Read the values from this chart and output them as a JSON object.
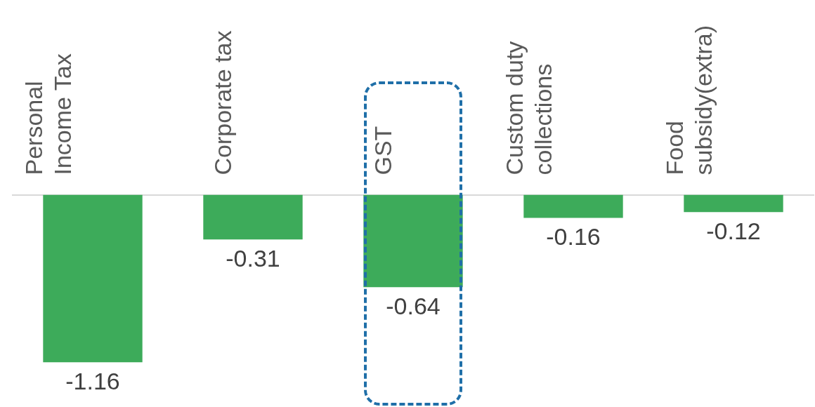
{
  "chart_data": {
    "type": "bar",
    "categories": [
      "Personal Income Tax",
      "Corporate tax",
      "GST",
      "Custom duty collections",
      "Food subsidy(extra)"
    ],
    "values": [
      -1.16,
      -0.31,
      -0.64,
      -0.16,
      -0.12
    ],
    "color": "#3dab5a",
    "data_labels": true,
    "grid": false,
    "legend": false
  }
}
